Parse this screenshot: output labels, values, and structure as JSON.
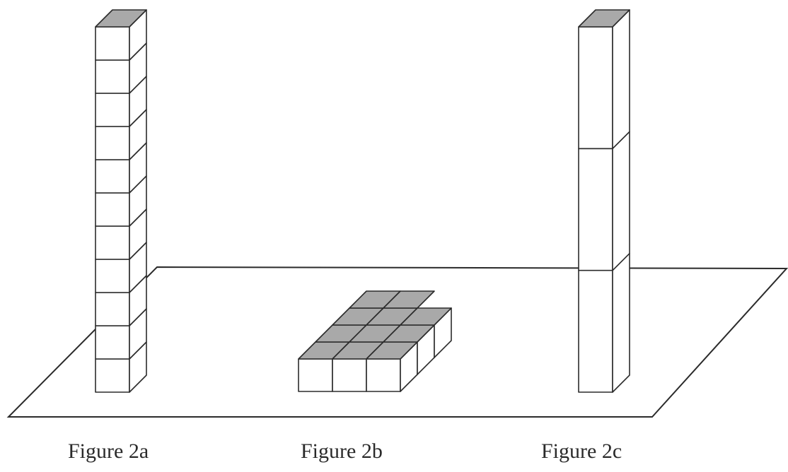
{
  "captions": {
    "fig_a": "Figure 2a",
    "fig_b": "Figure 2b",
    "fig_c": "Figure 2c"
  },
  "colors": {
    "stroke": "#2b2b2b",
    "face": "#ffffff",
    "top_shade": "#a9a9a9"
  },
  "figures": {
    "fig_a": {
      "cubes_stacked": 11
    },
    "fig_b": {
      "rows": 4,
      "columns": 3,
      "extra_front_row_columns": 1
    },
    "fig_c": {
      "blocks_stacked": 3
    }
  }
}
